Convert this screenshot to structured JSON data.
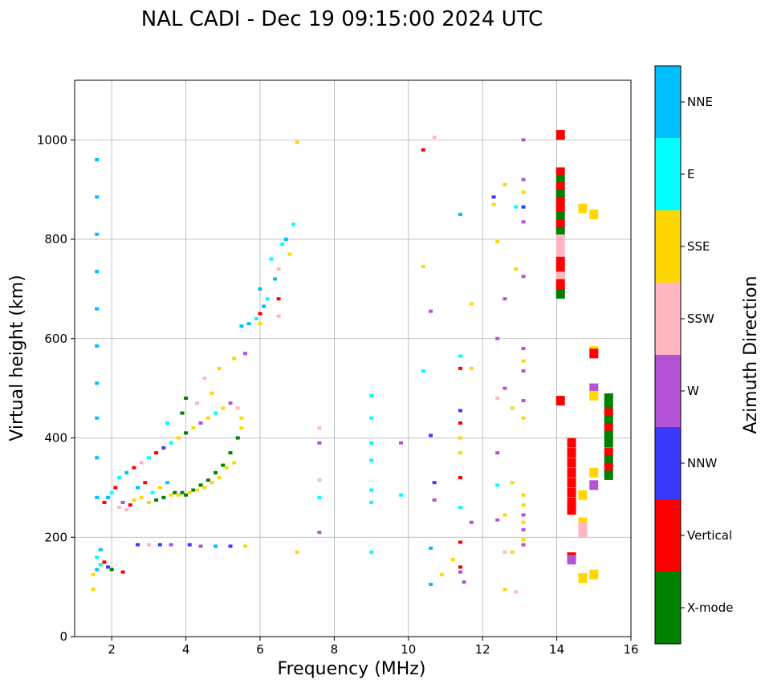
{
  "chart_data": {
    "type": "scatter",
    "title": "NAL CADI - Dec 19 09:15:00 2024 UTC",
    "xlabel": "Frequency (MHz)",
    "ylabel": "Virtual height (km)",
    "xlim": [
      1,
      16
    ],
    "ylim": [
      0,
      1120
    ],
    "xticks": [
      2,
      4,
      6,
      8,
      10,
      12,
      14,
      16
    ],
    "yticks": [
      0,
      200,
      400,
      600,
      800,
      1000
    ],
    "grid": true,
    "colorbar": {
      "title": "Azimuth Direction",
      "categories": [
        {
          "label": "X-mode",
          "color": "#008000"
        },
        {
          "label": "Vertical",
          "color": "#ff0000"
        },
        {
          "label": "NNW",
          "color": "#3a3aff"
        },
        {
          "label": "W",
          "color": "#b452d6"
        },
        {
          "label": "SSW",
          "color": "#ffb6c1"
        },
        {
          "label": "SSE",
          "color": "#ffd700"
        },
        {
          "label": "E",
          "color": "#00ffff"
        },
        {
          "label": "NNE",
          "color": "#00bfff"
        }
      ]
    },
    "points": [
      [
        1.6,
        960,
        "NNE"
      ],
      [
        1.6,
        885,
        "NNE"
      ],
      [
        1.6,
        810,
        "NNE"
      ],
      [
        1.6,
        735,
        "NNE"
      ],
      [
        1.6,
        660,
        "NNE"
      ],
      [
        1.6,
        585,
        "NNE"
      ],
      [
        1.6,
        510,
        "NNE"
      ],
      [
        1.6,
        440,
        "NNE"
      ],
      [
        1.6,
        360,
        "NNE"
      ],
      [
        1.6,
        280,
        "NNE"
      ],
      [
        1.5,
        125,
        "SSE"
      ],
      [
        1.6,
        135,
        "NNE"
      ],
      [
        1.7,
        145,
        "E"
      ],
      [
        1.8,
        150,
        "Vertical"
      ],
      [
        1.9,
        140,
        "NNW"
      ],
      [
        2.0,
        135,
        "X-mode"
      ],
      [
        1.6,
        160,
        "E"
      ],
      [
        1.7,
        175,
        "NNE"
      ],
      [
        1.5,
        95,
        "SSE"
      ],
      [
        2.3,
        130,
        "Vertical"
      ],
      [
        1.8,
        270,
        "Vertical"
      ],
      [
        1.9,
        280,
        "NNE"
      ],
      [
        2.0,
        290,
        "E"
      ],
      [
        2.1,
        300,
        "Vertical"
      ],
      [
        2.2,
        260,
        "SSW"
      ],
      [
        2.3,
        270,
        "W"
      ],
      [
        2.4,
        255,
        "SSW"
      ],
      [
        2.5,
        265,
        "Vertical"
      ],
      [
        2.6,
        275,
        "SSE"
      ],
      [
        2.7,
        300,
        "NNE"
      ],
      [
        2.8,
        280,
        "SSE"
      ],
      [
        2.9,
        310,
        "Vertical"
      ],
      [
        3.0,
        270,
        "SSE"
      ],
      [
        3.1,
        290,
        "E"
      ],
      [
        3.2,
        275,
        "X-mode"
      ],
      [
        3.3,
        300,
        "SSE"
      ],
      [
        3.4,
        280,
        "X-mode"
      ],
      [
        3.5,
        310,
        "NNE"
      ],
      [
        3.6,
        285,
        "SSE"
      ],
      [
        3.7,
        290,
        "X-mode"
      ],
      [
        3.8,
        285,
        "SSE"
      ],
      [
        3.9,
        290,
        "X-mode"
      ],
      [
        4.0,
        285,
        "X-mode"
      ],
      [
        4.2,
        295,
        "X-mode"
      ],
      [
        4.4,
        305,
        "X-mode"
      ],
      [
        4.6,
        315,
        "X-mode"
      ],
      [
        4.8,
        330,
        "X-mode"
      ],
      [
        5.0,
        345,
        "X-mode"
      ],
      [
        5.2,
        370,
        "X-mode"
      ],
      [
        5.4,
        400,
        "X-mode"
      ],
      [
        5.5,
        420,
        "SSE"
      ],
      [
        5.5,
        440,
        "SSE"
      ],
      [
        5.4,
        460,
        "SSW"
      ],
      [
        5.3,
        350,
        "SSE"
      ],
      [
        5.1,
        340,
        "SSE"
      ],
      [
        4.9,
        320,
        "SSE"
      ],
      [
        4.7,
        310,
        "SSE"
      ],
      [
        4.5,
        300,
        "SSE"
      ],
      [
        4.3,
        295,
        "SSE"
      ],
      [
        4.1,
        290,
        "SSE"
      ],
      [
        2.2,
        320,
        "E"
      ],
      [
        2.4,
        330,
        "NNE"
      ],
      [
        2.6,
        340,
        "Vertical"
      ],
      [
        2.8,
        350,
        "SSW"
      ],
      [
        3.0,
        360,
        "E"
      ],
      [
        3.2,
        370,
        "Vertical"
      ],
      [
        3.4,
        380,
        "NNW"
      ],
      [
        3.6,
        390,
        "E"
      ],
      [
        3.8,
        400,
        "SSE"
      ],
      [
        4.0,
        410,
        "X-mode"
      ],
      [
        4.2,
        420,
        "SSE"
      ],
      [
        4.4,
        430,
        "W"
      ],
      [
        4.6,
        440,
        "SSE"
      ],
      [
        4.8,
        450,
        "E"
      ],
      [
        5.0,
        460,
        "SSE"
      ],
      [
        5.2,
        470,
        "W"
      ],
      [
        3.5,
        430,
        "E"
      ],
      [
        3.9,
        450,
        "X-mode"
      ],
      [
        4.3,
        470,
        "SSW"
      ],
      [
        4.7,
        490,
        "SSE"
      ],
      [
        4.0,
        480,
        "X-mode"
      ],
      [
        4.5,
        520,
        "SSW"
      ],
      [
        4.9,
        540,
        "SSE"
      ],
      [
        5.3,
        560,
        "SSE"
      ],
      [
        5.6,
        570,
        "W"
      ],
      [
        5.5,
        625,
        "NNE"
      ],
      [
        5.7,
        630,
        "NNE"
      ],
      [
        5.9,
        640,
        "E"
      ],
      [
        6.0,
        650,
        "Vertical"
      ],
      [
        6.1,
        665,
        "NNE"
      ],
      [
        6.2,
        680,
        "E"
      ],
      [
        6.0,
        700,
        "NNE"
      ],
      [
        6.4,
        720,
        "NNE"
      ],
      [
        6.5,
        740,
        "SSW"
      ],
      [
        6.6,
        790,
        "E"
      ],
      [
        6.7,
        800,
        "NNE"
      ],
      [
        6.8,
        770,
        "SSE"
      ],
      [
        6.9,
        830,
        "E"
      ],
      [
        7.0,
        995,
        "SSE"
      ],
      [
        6.5,
        680,
        "Vertical"
      ],
      [
        6.5,
        645,
        "SSW"
      ],
      [
        6.0,
        630,
        "SSE"
      ],
      [
        6.3,
        760,
        "E"
      ],
      [
        2.7,
        185,
        "NNW"
      ],
      [
        3.0,
        185,
        "SSW"
      ],
      [
        3.3,
        185,
        "NNW"
      ],
      [
        3.6,
        185,
        "W"
      ],
      [
        4.1,
        185,
        "NNW"
      ],
      [
        4.4,
        182,
        "W"
      ],
      [
        4.8,
        182,
        "NNE"
      ],
      [
        5.2,
        182,
        "NNW"
      ],
      [
        5.6,
        182,
        "SSE"
      ],
      [
        7.0,
        170,
        "SSE"
      ],
      [
        7.6,
        420,
        "SSW"
      ],
      [
        7.6,
        390,
        "W"
      ],
      [
        7.6,
        315,
        "SSW"
      ],
      [
        7.6,
        280,
        "E"
      ],
      [
        7.6,
        210,
        "W"
      ],
      [
        9.0,
        485,
        "E"
      ],
      [
        9.0,
        440,
        "E"
      ],
      [
        9.0,
        390,
        "E"
      ],
      [
        9.0,
        355,
        "E"
      ],
      [
        9.0,
        295,
        "E"
      ],
      [
        9.0,
        270,
        "E"
      ],
      [
        9.0,
        170,
        "E"
      ],
      [
        9.8,
        285,
        "E"
      ],
      [
        9.8,
        390,
        "W"
      ],
      [
        10.4,
        980,
        "Vertical"
      ],
      [
        10.7,
        1005,
        "SSW"
      ],
      [
        10.4,
        745,
        "SSE"
      ],
      [
        10.6,
        655,
        "W"
      ],
      [
        10.4,
        535,
        "E"
      ],
      [
        10.6,
        405,
        "NNW"
      ],
      [
        10.7,
        310,
        "NNW"
      ],
      [
        10.7,
        275,
        "W"
      ],
      [
        10.6,
        178,
        "NNE"
      ],
      [
        10.6,
        105,
        "NNE"
      ],
      [
        10.9,
        125,
        "SSE"
      ],
      [
        11.2,
        155,
        "SSE"
      ],
      [
        11.4,
        140,
        "Vertical"
      ],
      [
        11.5,
        110,
        "W"
      ],
      [
        11.4,
        850,
        "NNE"
      ],
      [
        11.4,
        565,
        "E"
      ],
      [
        11.4,
        540,
        "Vertical"
      ],
      [
        11.4,
        455,
        "NNW"
      ],
      [
        11.4,
        430,
        "Vertical"
      ],
      [
        11.4,
        400,
        "SSE"
      ],
      [
        11.4,
        370,
        "SSE"
      ],
      [
        11.4,
        320,
        "Vertical"
      ],
      [
        11.4,
        260,
        "E"
      ],
      [
        11.4,
        190,
        "Vertical"
      ],
      [
        11.4,
        130,
        "W"
      ],
      [
        11.7,
        670,
        "SSE"
      ],
      [
        11.7,
        540,
        "SSE"
      ],
      [
        11.7,
        230,
        "W"
      ],
      [
        12.3,
        885,
        "NNW"
      ],
      [
        12.3,
        870,
        "SSE"
      ],
      [
        12.4,
        795,
        "SSE"
      ],
      [
        12.6,
        910,
        "SSE"
      ],
      [
        12.6,
        680,
        "W"
      ],
      [
        12.4,
        600,
        "W"
      ],
      [
        12.6,
        500,
        "W"
      ],
      [
        12.4,
        480,
        "SSW"
      ],
      [
        12.8,
        460,
        "SSE"
      ],
      [
        12.4,
        370,
        "W"
      ],
      [
        12.4,
        305,
        "E"
      ],
      [
        12.8,
        310,
        "SSE"
      ],
      [
        12.4,
        235,
        "W"
      ],
      [
        12.6,
        245,
        "SSE"
      ],
      [
        12.6,
        170,
        "SSW"
      ],
      [
        12.8,
        170,
        "SSE"
      ],
      [
        12.6,
        95,
        "SSE"
      ],
      [
        12.9,
        90,
        "SSW"
      ],
      [
        12.9,
        865,
        "E"
      ],
      [
        13.1,
        1000,
        "W"
      ],
      [
        13.1,
        920,
        "W"
      ],
      [
        13.1,
        895,
        "SSE"
      ],
      [
        13.1,
        865,
        "NNW"
      ],
      [
        13.1,
        835,
        "W"
      ],
      [
        12.9,
        740,
        "SSE"
      ],
      [
        13.1,
        725,
        "W"
      ],
      [
        13.1,
        580,
        "W"
      ],
      [
        13.1,
        555,
        "SSE"
      ],
      [
        13.1,
        535,
        "W"
      ],
      [
        13.1,
        475,
        "W"
      ],
      [
        13.1,
        440,
        "SSE"
      ],
      [
        13.1,
        285,
        "SSE"
      ],
      [
        13.1,
        265,
        "SSE"
      ],
      [
        13.1,
        245,
        "W"
      ],
      [
        13.1,
        230,
        "SSE"
      ],
      [
        13.1,
        215,
        "W"
      ],
      [
        13.1,
        195,
        "SSE"
      ],
      [
        13.1,
        185,
        "W"
      ],
      [
        14.1,
        1010,
        "Vertical"
      ],
      [
        14.1,
        935,
        "Vertical"
      ],
      [
        14.1,
        920,
        "X-mode"
      ],
      [
        14.1,
        905,
        "Vertical"
      ],
      [
        14.1,
        890,
        "X-mode"
      ],
      [
        14.1,
        875,
        "Vertical"
      ],
      [
        14.1,
        860,
        "Vertical"
      ],
      [
        14.1,
        845,
        "X-mode"
      ],
      [
        14.1,
        830,
        "Vertical"
      ],
      [
        14.1,
        815,
        "X-mode"
      ],
      [
        14.1,
        800,
        "SSW"
      ],
      [
        14.1,
        785,
        "SSW"
      ],
      [
        14.1,
        770,
        "SSW"
      ],
      [
        14.1,
        755,
        "Vertical"
      ],
      [
        14.1,
        740,
        "Vertical"
      ],
      [
        14.1,
        725,
        "SSW"
      ],
      [
        14.1,
        710,
        "Vertical"
      ],
      [
        14.1,
        700,
        "Vertical"
      ],
      [
        14.1,
        690,
        "X-mode"
      ],
      [
        14.1,
        475,
        "Vertical"
      ],
      [
        14.4,
        390,
        "Vertical"
      ],
      [
        14.4,
        370,
        "Vertical"
      ],
      [
        14.4,
        350,
        "Vertical"
      ],
      [
        14.4,
        330,
        "Vertical"
      ],
      [
        14.4,
        310,
        "Vertical"
      ],
      [
        14.4,
        290,
        "Vertical"
      ],
      [
        14.4,
        270,
        "Vertical"
      ],
      [
        14.4,
        255,
        "Vertical"
      ],
      [
        14.4,
        160,
        "Vertical"
      ],
      [
        14.4,
        155,
        "W"
      ],
      [
        14.7,
        862,
        "SSE"
      ],
      [
        14.7,
        285,
        "SSE"
      ],
      [
        14.7,
        230,
        "SSE"
      ],
      [
        14.7,
        220,
        "SSW"
      ],
      [
        14.7,
        210,
        "SSW"
      ],
      [
        14.7,
        118,
        "SSE"
      ],
      [
        15.0,
        850,
        "SSE"
      ],
      [
        15.0,
        575,
        "SSE"
      ],
      [
        15.0,
        570,
        "Vertical"
      ],
      [
        15.0,
        500,
        "W"
      ],
      [
        15.0,
        485,
        "SSE"
      ],
      [
        15.0,
        330,
        "SSE"
      ],
      [
        15.0,
        305,
        "W"
      ],
      [
        15.0,
        125,
        "SSE"
      ],
      [
        15.4,
        480,
        "X-mode"
      ],
      [
        15.4,
        465,
        "X-mode"
      ],
      [
        15.4,
        450,
        "Vertical"
      ],
      [
        15.4,
        435,
        "X-mode"
      ],
      [
        15.4,
        420,
        "Vertical"
      ],
      [
        15.4,
        405,
        "X-mode"
      ],
      [
        15.4,
        390,
        "X-mode"
      ],
      [
        15.4,
        370,
        "Vertical"
      ],
      [
        15.4,
        355,
        "X-mode"
      ],
      [
        15.4,
        340,
        "Vertical"
      ],
      [
        15.4,
        325,
        "X-mode"
      ]
    ]
  }
}
